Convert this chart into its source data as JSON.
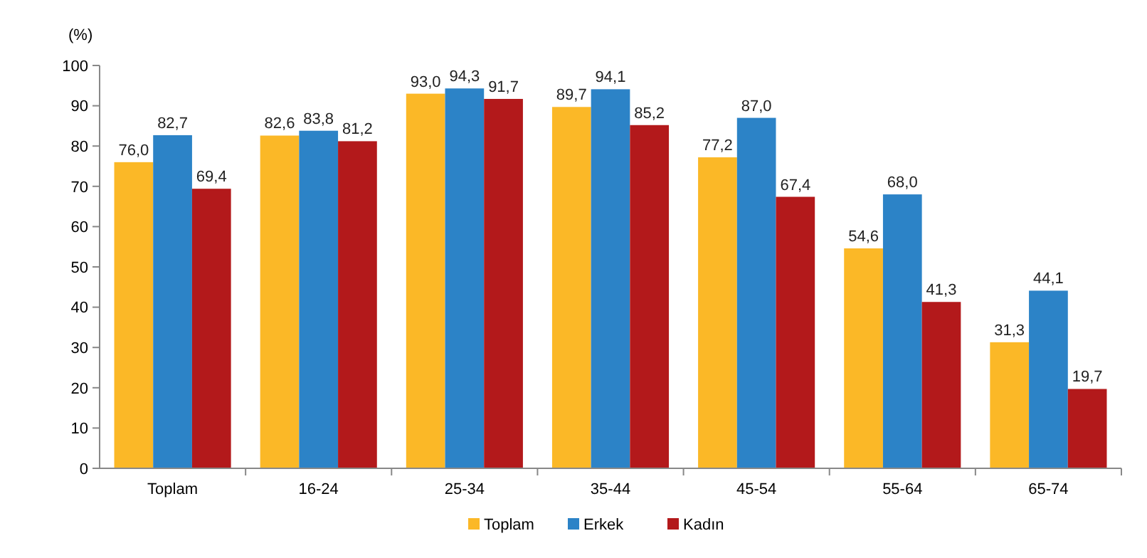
{
  "chart_data": {
    "type": "bar",
    "ylabel": "(%)",
    "categories": [
      "Toplam",
      "16-24",
      "25-34",
      "35-44",
      "45-54",
      "55-64",
      "65-74"
    ],
    "series": [
      {
        "name": "Toplam",
        "color": "#fbb827",
        "values": [
          76.0,
          82.6,
          93.0,
          89.7,
          77.2,
          54.6,
          31.3
        ],
        "value_labels": [
          "76,0",
          "82,6",
          "93,0",
          "89,7",
          "77,2",
          "54,6",
          "31,3"
        ]
      },
      {
        "name": "Erkek",
        "color": "#2c83c7",
        "values": [
          82.7,
          83.8,
          94.3,
          94.1,
          87.0,
          68.0,
          44.1
        ],
        "value_labels": [
          "82,7",
          "83,8",
          "94,3",
          "94,1",
          "87,0",
          "68,0",
          "44,1"
        ]
      },
      {
        "name": "Kadın",
        "color": "#b3191b",
        "values": [
          69.4,
          81.2,
          91.7,
          85.2,
          67.4,
          41.3,
          19.7
        ],
        "value_labels": [
          "69,4",
          "81,2",
          "91,7",
          "85,2",
          "67,4",
          "41,3",
          "19,7"
        ]
      }
    ],
    "ylim": [
      0,
      100
    ],
    "yticks": [
      0,
      10,
      20,
      30,
      40,
      50,
      60,
      70,
      80,
      90,
      100
    ],
    "legend": "bottom"
  }
}
